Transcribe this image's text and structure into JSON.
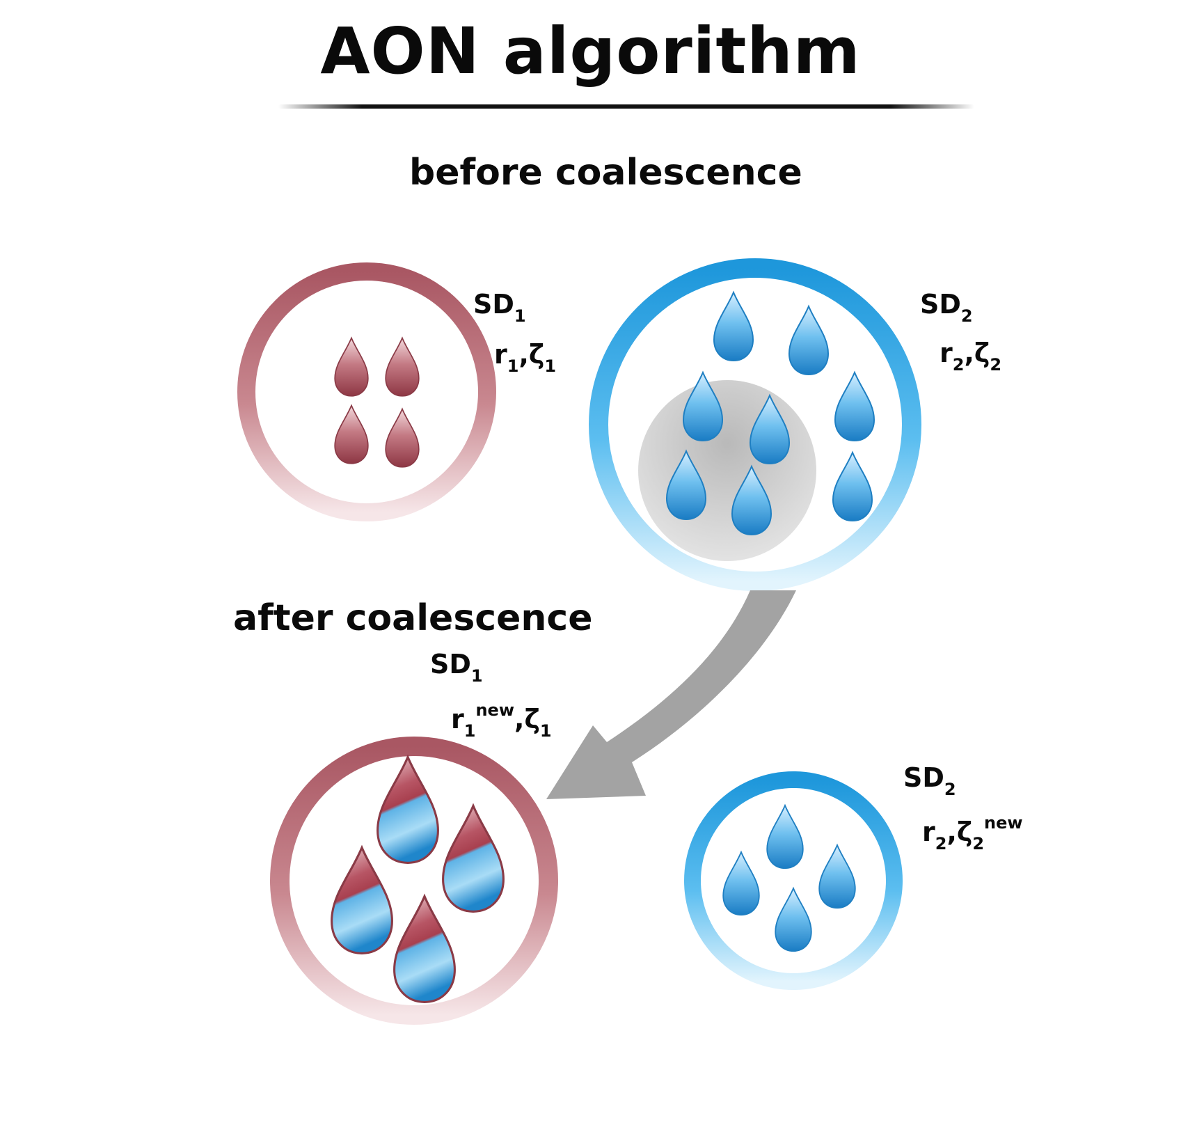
{
  "title": "AON algorithm",
  "sections": {
    "before": "before coalescence",
    "after": "after coalescence"
  },
  "colors": {
    "sd1": "#b0606a",
    "sd2": "#1e9be0",
    "arrow": "#a0a0a0",
    "core": "#c8c8c8"
  },
  "labels": {
    "before_sd1": {
      "name": "SD",
      "name_sub": "1",
      "r": "r",
      "r_sub": "1",
      "sep": ",",
      "zeta": "ζ",
      "zeta_sub": "1"
    },
    "before_sd2": {
      "name": "SD",
      "name_sub": "2",
      "r": "r",
      "r_sub": "2",
      "sep": ",",
      "zeta": "ζ",
      "zeta_sub": "2"
    },
    "after_sd1": {
      "name": "SD",
      "name_sub": "1",
      "r": "r",
      "r_sub": "1",
      "r_sup": "new",
      "sep": ",",
      "zeta": "ζ",
      "zeta_sub": "1"
    },
    "after_sd2": {
      "name": "SD",
      "name_sub": "2",
      "r": "r",
      "r_sub": "2",
      "sep": ",",
      "zeta": "ζ",
      "zeta_sub": "2",
      "zeta_sup": "new"
    }
  }
}
